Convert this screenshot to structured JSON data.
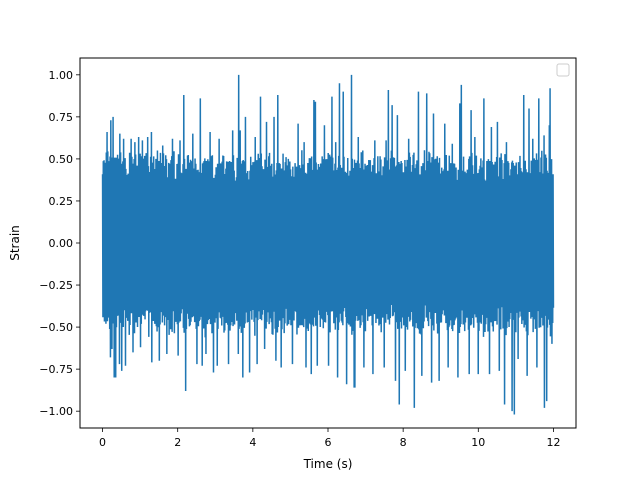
{
  "chart_data": {
    "type": "line",
    "title": "",
    "xlabel": "Time (s)",
    "ylabel": "Strain",
    "xlim": [
      -0.6,
      12.6
    ],
    "ylim": [
      -1.1,
      1.1
    ],
    "xticks": [
      0,
      2,
      4,
      6,
      8,
      10,
      12
    ],
    "xtick_labels": [
      "0",
      "2",
      "4",
      "6",
      "8",
      "10",
      "12"
    ],
    "yticks": [
      -1.0,
      -0.75,
      -0.5,
      -0.25,
      0.0,
      0.25,
      0.5,
      0.75,
      1.0
    ],
    "ytick_labels": [
      "−1.00",
      "−0.75",
      "−0.50",
      "−0.25",
      "0.00",
      "0.25",
      "0.50",
      "0.75",
      "1.00"
    ],
    "grid": false,
    "legend": {
      "placement": "top-right",
      "entries": []
    },
    "series": [
      {
        "color": "#1f77b4",
        "x_range": [
          0,
          12
        ],
        "sample_count": 1200,
        "typical_amplitude": 0.5,
        "peaks": [
          {
            "x": 0.12,
            "y": 0.66
          },
          {
            "x": 0.2,
            "y": -0.68
          },
          {
            "x": 0.22,
            "y": 0.73
          },
          {
            "x": 0.25,
            "y": -0.63
          },
          {
            "x": 0.27,
            "y": 0.75
          },
          {
            "x": 0.45,
            "y": 0.65
          },
          {
            "x": 0.55,
            "y": 0.62
          },
          {
            "x": 0.75,
            "y": 0.62
          },
          {
            "x": 0.85,
            "y": 0.6
          },
          {
            "x": 0.95,
            "y": 0.63
          },
          {
            "x": 1.05,
            "y": 0.61
          },
          {
            "x": 1.2,
            "y": 0.63
          },
          {
            "x": 1.3,
            "y": 0.66
          },
          {
            "x": 1.45,
            "y": 0.55
          },
          {
            "x": 1.6,
            "y": 0.58
          },
          {
            "x": 1.85,
            "y": 0.62
          },
          {
            "x": 2.05,
            "y": 0.61
          },
          {
            "x": 2.15,
            "y": 0.88
          },
          {
            "x": 2.2,
            "y": -0.88
          },
          {
            "x": 2.4,
            "y": 0.65
          },
          {
            "x": 2.6,
            "y": 0.86
          },
          {
            "x": 2.85,
            "y": 0.66
          },
          {
            "x": 3.1,
            "y": 0.62
          },
          {
            "x": 3.45,
            "y": 0.67
          },
          {
            "x": 3.65,
            "y": 0.67
          },
          {
            "x": 3.8,
            "y": 0.75
          },
          {
            "x": 4.05,
            "y": 0.63
          },
          {
            "x": 4.2,
            "y": 0.87
          },
          {
            "x": 4.35,
            "y": 0.72
          },
          {
            "x": 4.65,
            "y": 0.88
          },
          {
            "x": 5.2,
            "y": 0.71
          },
          {
            "x": 5.35,
            "y": 0.6
          },
          {
            "x": 5.65,
            "y": 0.84
          },
          {
            "x": 5.9,
            "y": 0.7
          },
          {
            "x": 6.2,
            "y": 0.6
          },
          {
            "x": 6.4,
            "y": 0.9
          },
          {
            "x": 6.8,
            "y": 0.63
          },
          {
            "x": 7.25,
            "y": 0.61
          },
          {
            "x": 7.55,
            "y": 0.61
          },
          {
            "x": 7.7,
            "y": 0.82
          },
          {
            "x": 7.85,
            "y": 0.76
          },
          {
            "x": 8.15,
            "y": 0.62
          },
          {
            "x": 8.3,
            "y": -0.98
          },
          {
            "x": 8.4,
            "y": 0.9
          },
          {
            "x": 8.8,
            "y": 0.77
          },
          {
            "x": 9.1,
            "y": 0.71
          },
          {
            "x": 9.3,
            "y": 0.59
          },
          {
            "x": 9.5,
            "y": 0.83
          },
          {
            "x": 9.8,
            "y": 0.79
          },
          {
            "x": 9.9,
            "y": 0.63
          },
          {
            "x": 10.35,
            "y": 0.69
          },
          {
            "x": 10.5,
            "y": 0.72
          },
          {
            "x": 10.75,
            "y": 0.6
          },
          {
            "x": 11.2,
            "y": 0.66
          },
          {
            "x": 11.45,
            "y": 0.62
          },
          {
            "x": 11.75,
            "y": 0.64
          },
          {
            "x": 11.9,
            "y": 0.68
          },
          {
            "x": 0.3,
            "y": -0.8
          },
          {
            "x": 0.35,
            "y": -0.8
          },
          {
            "x": 0.45,
            "y": -0.72
          },
          {
            "x": 0.5,
            "y": -0.76
          },
          {
            "x": 0.6,
            "y": -0.73
          },
          {
            "x": 0.8,
            "y": -0.65
          },
          {
            "x": 1.0,
            "y": -0.62
          },
          {
            "x": 1.3,
            "y": -0.71
          },
          {
            "x": 1.5,
            "y": -0.7
          },
          {
            "x": 1.7,
            "y": -0.66
          },
          {
            "x": 2.0,
            "y": -0.67
          },
          {
            "x": 2.5,
            "y": -0.72
          },
          {
            "x": 2.75,
            "y": -0.66
          },
          {
            "x": 2.95,
            "y": -0.77
          },
          {
            "x": 3.05,
            "y": -0.73
          },
          {
            "x": 3.35,
            "y": -0.72
          },
          {
            "x": 3.6,
            "y": -0.66
          },
          {
            "x": 3.9,
            "y": -0.77
          },
          {
            "x": 4.1,
            "y": -0.72
          },
          {
            "x": 4.3,
            "y": -0.63
          },
          {
            "x": 4.75,
            "y": -0.74
          },
          {
            "x": 5.05,
            "y": -0.72
          },
          {
            "x": 5.4,
            "y": -0.74
          },
          {
            "x": 5.7,
            "y": -0.73
          },
          {
            "x": 6.0,
            "y": -0.73
          },
          {
            "x": 6.25,
            "y": -0.8
          },
          {
            "x": 6.5,
            "y": -0.84
          },
          {
            "x": 6.7,
            "y": -0.86
          },
          {
            "x": 6.95,
            "y": -0.74
          },
          {
            "x": 7.2,
            "y": -0.78
          },
          {
            "x": 7.5,
            "y": -0.74
          },
          {
            "x": 7.8,
            "y": -0.82
          },
          {
            "x": 8.05,
            "y": -0.76
          },
          {
            "x": 8.5,
            "y": -0.79
          },
          {
            "x": 8.75,
            "y": -0.83
          },
          {
            "x": 8.95,
            "y": -0.82
          },
          {
            "x": 9.2,
            "y": -0.74
          },
          {
            "x": 9.45,
            "y": -0.8
          },
          {
            "x": 9.75,
            "y": -0.78
          },
          {
            "x": 10.0,
            "y": -0.78
          },
          {
            "x": 10.3,
            "y": -0.78
          },
          {
            "x": 10.55,
            "y": -0.76
          },
          {
            "x": 10.7,
            "y": -0.96
          },
          {
            "x": 10.9,
            "y": -1.0
          },
          {
            "x": 11.05,
            "y": -0.69
          },
          {
            "x": 11.3,
            "y": -0.79
          },
          {
            "x": 11.55,
            "y": -0.74
          },
          {
            "x": 11.75,
            "y": -0.98
          },
          {
            "x": 11.95,
            "y": -0.6
          },
          {
            "x": 3.62,
            "y": 1.0
          },
          {
            "x": 3.72,
            "y": -0.8
          },
          {
            "x": 6.62,
            "y": 1.0
          },
          {
            "x": 6.72,
            "y": -0.86
          },
          {
            "x": 10.95,
            "y": -1.02
          },
          {
            "x": 11.35,
            "y": 0.8
          },
          {
            "x": 11.82,
            "y": -0.94
          },
          {
            "x": 11.88,
            "y": 0.7
          },
          {
            "x": 10.15,
            "y": 0.86
          },
          {
            "x": 8.62,
            "y": 0.89
          },
          {
            "x": 9.55,
            "y": 0.94
          },
          {
            "x": 11.2,
            "y": 0.88
          },
          {
            "x": 11.6,
            "y": 0.86
          },
          {
            "x": 11.9,
            "y": 0.92
          },
          {
            "x": 7.6,
            "y": 0.91
          },
          {
            "x": 7.9,
            "y": -0.96
          },
          {
            "x": 5.55,
            "y": -0.78
          },
          {
            "x": 5.62,
            "y": 0.85
          },
          {
            "x": 4.6,
            "y": -0.7
          },
          {
            "x": 4.55,
            "y": 0.75
          },
          {
            "x": 2.65,
            "y": -0.73
          },
          {
            "x": 6.1,
            "y": 0.87
          },
          {
            "x": 6.3,
            "y": 0.95
          }
        ]
      }
    ]
  }
}
